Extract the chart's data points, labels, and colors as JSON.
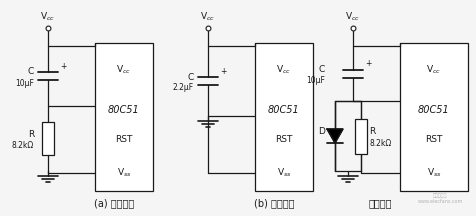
{
  "background_color": "#f5f5f5",
  "line_color": "#1a1a1a",
  "text_color": "#1a1a1a",
  "font_size": 6.5,
  "label_font_size": 7,
  "circuits": [
    {
      "label": "(a) 典型电路",
      "cap_value": "10μF",
      "res_value": "8.2kΩ",
      "has_resistor": true,
      "has_diode": false
    },
    {
      "label": "(b) 简化电路",
      "cap_value": "2.2μF",
      "res_value": null,
      "has_resistor": false,
      "has_diode": false
    },
    {
      "label": "改进电路",
      "cap_value": "10μF",
      "res_value": "8.2kΩ",
      "has_resistor": true,
      "has_diode": true
    }
  ]
}
